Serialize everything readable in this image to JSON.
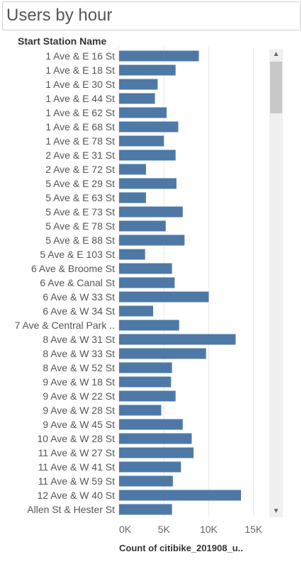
{
  "title": "Users by hour",
  "row_header": "Start Station Name",
  "x_axis_title": "Count of citibike_201908_u..",
  "scroll": {
    "up_icon": "chevron-up-icon",
    "down_icon": "chevron-down-icon"
  },
  "colors": {
    "bar": "#4e79a7",
    "grid": "#e8e8e8",
    "axis_text": "#666666",
    "label_text": "#555555"
  },
  "chart_data": {
    "type": "bar",
    "orientation": "horizontal",
    "title": "Users by hour",
    "ylabel": "Start Station Name",
    "xlabel": "Count of citibike_201908_u..",
    "xlim": [
      0,
      15500
    ],
    "xticks": [
      0,
      5000,
      10000,
      15000
    ],
    "xtick_labels": [
      "0K",
      "5K",
      "10K",
      "15K"
    ],
    "grid": true,
    "categories": [
      "1 Ave & E 16 St",
      "1 Ave & E 18 St",
      "1 Ave & E 30 St",
      "1 Ave & E 44 St",
      "1 Ave & E 62 St",
      "1 Ave & E 68 St",
      "1 Ave & E 78 St",
      "2 Ave & E 31 St",
      "2 Ave & E 72 St",
      "5 Ave & E 29 St",
      "5 Ave & E 63 St",
      "5 Ave & E 73 St",
      "5 Ave & E 78 St",
      "5 Ave & E 88 St",
      "5 Ave & E 103 St",
      "6 Ave & Broome St",
      "6 Ave & Canal St",
      "6 Ave & W 33 St",
      "6 Ave & W 34 St",
      "7 Ave & Central Park ..",
      "8 Ave & W 31 St",
      "8 Ave & W 33 St",
      "8 Ave & W 52 St",
      "9 Ave & W 18 St",
      "9 Ave & W 22 St",
      "9 Ave & W 28 St",
      "9 Ave & W 45 St",
      "10 Ave & W 28 St",
      "11 Ave & W 27 St",
      "11 Ave & W 41 St",
      "11 Ave & W 59 St",
      "12 Ave & W 40 St",
      "Allen St & Hester St"
    ],
    "values": [
      8900,
      6300,
      4300,
      4000,
      5300,
      6600,
      5000,
      6300,
      3000,
      6400,
      3000,
      7100,
      5200,
      7300,
      2900,
      5900,
      6200,
      10000,
      3800,
      6700,
      13000,
      9700,
      5900,
      5800,
      6300,
      4700,
      7100,
      8100,
      8300,
      6900,
      6000,
      13600,
      5900
    ]
  }
}
